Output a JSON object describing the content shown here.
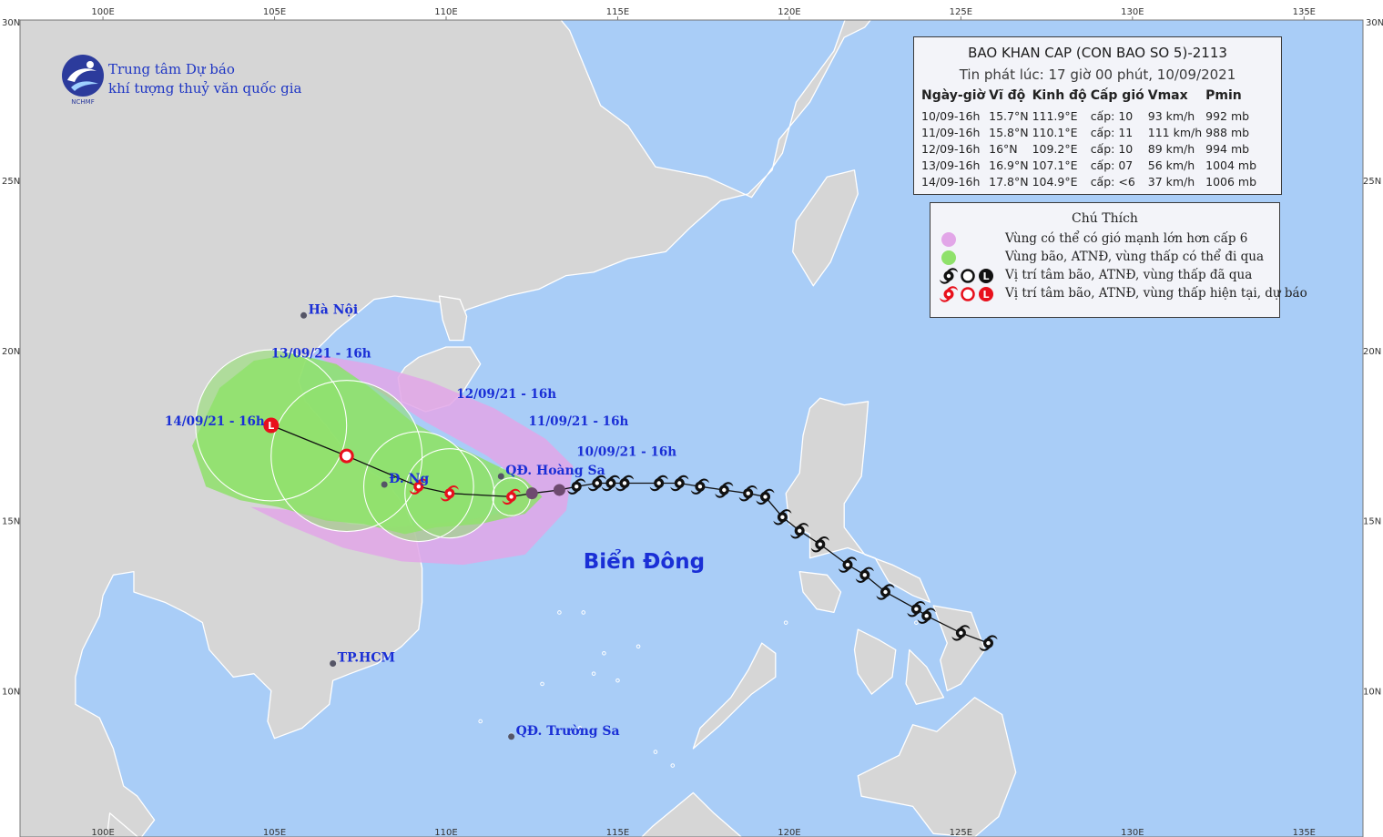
{
  "page": {
    "background": "#a9cdf7"
  },
  "colors": {
    "sea": "#a9cdf7",
    "land": "#d6d6d6",
    "land_border": "#ffffff",
    "frame": "#777777",
    "track_past": "#111111",
    "track_forecast": "#e8101c",
    "strong_wind_area": "#e2a6e8",
    "danger_area": "#8fe16b",
    "label_blue": "#1a2fd6",
    "text_dark": "#222222"
  },
  "organization": {
    "name_line1": "Trung tâm Dự báo",
    "name_line2": "khí tượng thuỷ văn quốc gia",
    "logo_text": "NCHMF"
  },
  "map": {
    "projection_lon_range": [
      97,
      137.3
    ],
    "projection_lat_range": [
      5.7,
      30.3
    ],
    "lon_ticks": [
      {
        "lon": 100,
        "label": "100E"
      },
      {
        "lon": 105,
        "label": "105E"
      },
      {
        "lon": 110,
        "label": "110E"
      },
      {
        "lon": 115,
        "label": "115E"
      },
      {
        "lon": 120,
        "label": "120E"
      },
      {
        "lon": 125,
        "label": "125E"
      },
      {
        "lon": 130,
        "label": "130E"
      },
      {
        "lon": 135,
        "label": "135E"
      }
    ],
    "lat_ticks": [
      {
        "lat": 10,
        "label": "10N"
      },
      {
        "lat": 15,
        "label": "15N"
      },
      {
        "lat": 20,
        "label": "20N"
      },
      {
        "lat": 25,
        "label": "25N"
      }
    ],
    "corner_labels": {
      "top_left": "30N",
      "top_right": "30N"
    },
    "places": [
      {
        "name": "Hà Nội",
        "lon": 105.85,
        "lat": 21.03,
        "color": "#1a2fd6",
        "dot": true
      },
      {
        "name": "TP.HCM",
        "lon": 106.7,
        "lat": 10.8,
        "color": "#1a2fd6",
        "dot": true
      },
      {
        "name": "Đ. Ng",
        "lon": 108.2,
        "lat": 16.06,
        "color": "#1a2fd6",
        "dot": true
      },
      {
        "name": "QĐ. Hoàng Sa",
        "lon": 111.6,
        "lat": 16.3,
        "color": "#1a2fd6",
        "dot": true
      },
      {
        "name": "QĐ. Trường Sa",
        "lon": 111.9,
        "lat": 8.65,
        "color": "#1a2fd6",
        "dot": true
      }
    ],
    "sea_label": "Biển Đông",
    "sea_label_position": {
      "lon": 114,
      "lat": 13.6
    },
    "date_labels": [
      {
        "text": "10/09/21 - 16h",
        "lon": 113.8,
        "lat": 16.9
      },
      {
        "text": "11/09/21 - 16h",
        "lon": 112.4,
        "lat": 17.8
      },
      {
        "text": "12/09/21 - 16h",
        "lon": 110.3,
        "lat": 18.6
      },
      {
        "text": "13/09/21 - 16h",
        "lon": 104.9,
        "lat": 19.8
      },
      {
        "text": "14/09/21 - 16h",
        "lon": 101.8,
        "lat": 17.8
      }
    ],
    "past_track": [
      [
        125.8,
        11.4
      ],
      [
        125.0,
        11.7
      ],
      [
        124.0,
        12.2
      ],
      [
        123.7,
        12.4
      ],
      [
        122.8,
        12.9
      ],
      [
        122.2,
        13.4
      ],
      [
        121.7,
        13.7
      ],
      [
        120.9,
        14.3
      ],
      [
        120.3,
        14.7
      ],
      [
        119.8,
        15.1
      ],
      [
        119.3,
        15.7
      ],
      [
        118.8,
        15.8
      ],
      [
        118.1,
        15.9
      ],
      [
        117.4,
        16.0
      ],
      [
        116.8,
        16.1
      ],
      [
        116.2,
        16.1
      ],
      [
        115.2,
        16.1
      ],
      [
        114.8,
        16.1
      ],
      [
        114.4,
        16.1
      ],
      [
        113.8,
        16.0
      ],
      [
        113.3,
        15.9
      ],
      [
        112.5,
        15.8
      ]
    ],
    "forecast_track": [
      {
        "lon": 111.9,
        "lat": 15.7,
        "symbol": "storm"
      },
      {
        "lon": 110.1,
        "lat": 15.8,
        "symbol": "storm"
      },
      {
        "lon": 109.2,
        "lat": 16.0,
        "symbol": "storm"
      },
      {
        "lon": 107.1,
        "lat": 16.9,
        "symbol": "depression"
      },
      {
        "lon": 104.9,
        "lat": 17.8,
        "symbol": "low"
      }
    ],
    "radius_circles": [
      {
        "lon": 111.9,
        "lat": 15.7,
        "radius_deg": 0.55
      },
      {
        "lon": 110.1,
        "lat": 15.8,
        "radius_deg": 1.3
      },
      {
        "lon": 109.2,
        "lat": 16.0,
        "radius_deg": 1.6
      },
      {
        "lon": 107.1,
        "lat": 16.9,
        "radius_deg": 2.2
      },
      {
        "lon": 104.9,
        "lat": 17.8,
        "radius_deg": 2.2
      }
    ],
    "danger_area": [
      [
        102.6,
        17.2
      ],
      [
        103.4,
        18.9
      ],
      [
        104.4,
        19.7
      ],
      [
        105.6,
        19.9
      ],
      [
        106.8,
        19.6
      ],
      [
        107.8,
        18.9
      ],
      [
        109.0,
        17.9
      ],
      [
        110.3,
        17.2
      ],
      [
        111.5,
        16.6
      ],
      [
        112.3,
        16.2
      ],
      [
        112.8,
        15.7
      ],
      [
        112.3,
        15.2
      ],
      [
        111.0,
        14.9
      ],
      [
        109.7,
        14.8
      ],
      [
        108.8,
        14.6
      ],
      [
        107.6,
        14.9
      ],
      [
        106.5,
        15.0
      ],
      [
        105.1,
        15.4
      ],
      [
        104.0,
        15.6
      ],
      [
        103.0,
        16.0
      ]
    ],
    "strong_wind_area": [
      [
        106.1,
        19.9
      ],
      [
        107.8,
        19.6
      ],
      [
        109.5,
        19.1
      ],
      [
        111.4,
        18.3
      ],
      [
        112.9,
        17.4
      ],
      [
        113.7,
        16.6
      ],
      [
        113.5,
        15.3
      ],
      [
        112.3,
        14.0
      ],
      [
        110.5,
        13.7
      ],
      [
        108.7,
        13.8
      ],
      [
        107.0,
        14.2
      ],
      [
        105.3,
        14.9
      ],
      [
        104.3,
        15.4
      ],
      [
        105.6,
        15.3
      ],
      [
        107.2,
        14.9
      ],
      [
        108.4,
        14.8
      ],
      [
        110.6,
        15.0
      ],
      [
        111.9,
        15.3
      ],
      [
        112.4,
        16.0
      ],
      [
        111.2,
        16.9
      ],
      [
        109.4,
        17.9
      ],
      [
        107.9,
        18.9
      ]
    ]
  },
  "forecast_panel": {
    "title": "BAO KHAN CAP (CON BAO SO 5)-2113",
    "subtitle": "Tin phát lúc: 17 giờ 00 phút, 10/09/2021",
    "headers": [
      "Ngày-giờ",
      "Vĩ độ",
      "Kinh độ",
      "Cấp gió",
      "Vmax",
      "Pmin"
    ],
    "rows": [
      [
        "10/09-16h",
        "15.7°N",
        "111.9°E",
        "cấp: 10",
        "93 km/h",
        "992 mb"
      ],
      [
        "11/09-16h",
        "15.8°N",
        "110.1°E",
        "cấp: 11",
        "111 km/h",
        "988 mb"
      ],
      [
        "12/09-16h",
        "16°N",
        "109.2°E",
        "cấp: 10",
        "89 km/h",
        "994 mb"
      ],
      [
        "13/09-16h",
        "16.9°N",
        "107.1°E",
        "cấp: 07",
        "56 km/h",
        "1004 mb"
      ],
      [
        "14/09-16h",
        "17.8°N",
        "104.9°E",
        "cấp: <6",
        "37 km/h",
        "1006 mb"
      ]
    ]
  },
  "legend": {
    "title": "Chú Thích",
    "items": [
      {
        "text": "Vùng có thể có gió mạnh lớn hơn cấp 6",
        "symbol": "purple-circle"
      },
      {
        "text": "Vùng bão, ATNĐ, vùng thấp có thể đi qua",
        "symbol": "green-circle"
      },
      {
        "text": "Vị trí tâm bão, ATNĐ, vùng thấp đã qua",
        "symbol": "black-symbols"
      },
      {
        "text": "Vị trí tâm bão, ATNĐ, vùng thấp hiện tại, dự báo",
        "symbol": "red-symbols"
      }
    ]
  }
}
